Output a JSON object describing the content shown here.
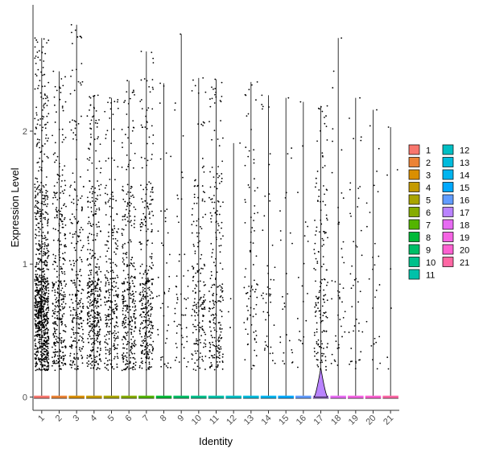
{
  "chart_data": {
    "type": "violin",
    "xlabel": "Identity",
    "ylabel": "Expression Level",
    "ylim": [
      -0.1,
      2.95
    ],
    "yticks": [
      0,
      1,
      2
    ],
    "categories": [
      "1",
      "2",
      "3",
      "4",
      "5",
      "6",
      "7",
      "8",
      "9",
      "10",
      "11",
      "12",
      "13",
      "14",
      "15",
      "16",
      "17",
      "18",
      "19",
      "20",
      "21"
    ],
    "colors": [
      "#F8766D",
      "#EB8335",
      "#DA8F00",
      "#C49A00",
      "#A9A400",
      "#86AC00",
      "#53B400",
      "#00BA38",
      "#00BE67",
      "#00C08B",
      "#00C1A9",
      "#00BFC4",
      "#00BBDC",
      "#00B4EF",
      "#00A9FF",
      "#619CFF",
      "#B983FF",
      "#E76BF3",
      "#F564E3",
      "#FD61D1",
      "#FF67A4"
    ],
    "max_expression": [
      2.7,
      2.45,
      2.8,
      2.27,
      2.25,
      2.38,
      2.6,
      2.36,
      2.73,
      2.4,
      2.39,
      1.91,
      2.37,
      2.27,
      2.25,
      2.22,
      2.19,
      2.7,
      2.25,
      2.16,
      2.03
    ],
    "point_counts": [
      900,
      350,
      250,
      400,
      260,
      320,
      330,
      45,
      55,
      180,
      220,
      4,
      85,
      45,
      28,
      20,
      160,
      45,
      45,
      28,
      7
    ],
    "violin_peak": {
      "category": "17",
      "height": 0.22,
      "half_width": 0.38
    },
    "legend": {
      "position": "right",
      "col1": [
        "1",
        "2",
        "3",
        "4",
        "5",
        "6",
        "7",
        "8",
        "9",
        "10",
        "11"
      ],
      "col2": [
        "12",
        "13",
        "14",
        "15",
        "16",
        "17",
        "18",
        "19",
        "20",
        "21"
      ]
    }
  }
}
